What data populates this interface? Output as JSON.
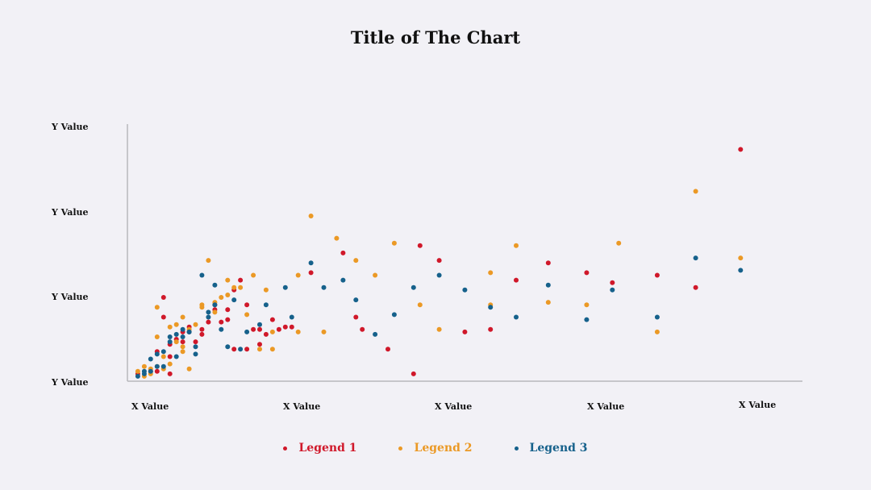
{
  "chart_data": {
    "type": "scatter",
    "title": "Title of The Chart",
    "x_tick_labels": [
      "X Value",
      "X Value",
      "X Value",
      "X Value",
      "X Value"
    ],
    "y_tick_labels": [
      "Y Value",
      "Y Value",
      "Y Value",
      "Y Value"
    ],
    "xlim": [
      0,
      100
    ],
    "ylim": [
      0,
      100
    ],
    "grid": false,
    "legend_position": "bottom",
    "series": [
      {
        "name": "Legend 1",
        "color": "#d0182a",
        "points": [
          [
            1,
            2
          ],
          [
            3,
            3
          ],
          [
            4,
            3
          ],
          [
            4,
            11
          ],
          [
            5,
            25
          ],
          [
            5,
            33
          ],
          [
            6,
            9
          ],
          [
            6,
            14
          ],
          [
            6,
            2
          ],
          [
            7,
            16
          ],
          [
            8,
            19
          ],
          [
            8,
            15
          ],
          [
            9,
            19
          ],
          [
            9,
            21
          ],
          [
            10,
            15
          ],
          [
            11,
            20
          ],
          [
            11,
            18
          ],
          [
            12,
            23
          ],
          [
            13,
            30
          ],
          [
            13,
            28
          ],
          [
            14,
            23
          ],
          [
            15,
            24
          ],
          [
            15,
            28
          ],
          [
            16,
            36
          ],
          [
            16,
            12
          ],
          [
            17,
            40
          ],
          [
            18,
            30
          ],
          [
            18,
            12
          ],
          [
            19,
            20
          ],
          [
            20,
            14
          ],
          [
            20,
            20
          ],
          [
            21,
            18
          ],
          [
            22,
            24
          ],
          [
            23,
            20
          ],
          [
            24,
            21
          ],
          [
            25,
            21
          ],
          [
            28,
            43
          ],
          [
            33,
            51
          ],
          [
            35,
            25
          ],
          [
            36,
            20
          ],
          [
            40,
            12
          ],
          [
            44,
            2
          ],
          [
            45,
            54
          ],
          [
            48,
            48
          ],
          [
            52,
            19
          ],
          [
            56,
            20
          ],
          [
            60,
            40
          ],
          [
            65,
            47
          ],
          [
            71,
            43
          ],
          [
            75,
            39
          ],
          [
            82,
            42
          ],
          [
            88,
            37
          ],
          [
            95,
            93
          ]
        ]
      },
      {
        "name": "Legend 2",
        "color": "#eb9925",
        "points": [
          [
            1,
            3
          ],
          [
            2,
            5
          ],
          [
            2,
            1
          ],
          [
            3,
            4
          ],
          [
            3,
            2
          ],
          [
            4,
            5
          ],
          [
            4,
            17
          ],
          [
            4,
            29
          ],
          [
            5,
            9
          ],
          [
            5,
            4
          ],
          [
            6,
            6
          ],
          [
            6,
            21
          ],
          [
            7,
            15
          ],
          [
            7,
            22
          ],
          [
            8,
            13
          ],
          [
            8,
            11
          ],
          [
            8,
            25
          ],
          [
            9,
            4
          ],
          [
            9,
            20
          ],
          [
            10,
            22
          ],
          [
            11,
            30
          ],
          [
            11,
            29
          ],
          [
            12,
            48
          ],
          [
            13,
            27
          ],
          [
            13,
            31
          ],
          [
            14,
            33
          ],
          [
            15,
            40
          ],
          [
            15,
            34
          ],
          [
            16,
            37
          ],
          [
            17,
            37
          ],
          [
            18,
            26
          ],
          [
            19,
            42
          ],
          [
            20,
            12
          ],
          [
            21,
            36
          ],
          [
            22,
            12
          ],
          [
            22,
            19
          ],
          [
            26,
            42
          ],
          [
            26,
            19
          ],
          [
            28,
            66
          ],
          [
            30,
            19
          ],
          [
            32,
            57
          ],
          [
            35,
            48
          ],
          [
            38,
            42
          ],
          [
            41,
            55
          ],
          [
            45,
            30
          ],
          [
            48,
            20
          ],
          [
            56,
            30
          ],
          [
            56,
            43
          ],
          [
            60,
            54
          ],
          [
            65,
            31
          ],
          [
            71,
            30
          ],
          [
            76,
            55
          ],
          [
            82,
            19
          ],
          [
            88,
            76
          ],
          [
            95,
            49
          ]
        ]
      },
      {
        "name": "Legend 3",
        "color": "#16618b",
        "points": [
          [
            1,
            1
          ],
          [
            2,
            3
          ],
          [
            2,
            2
          ],
          [
            3,
            3
          ],
          [
            3,
            8
          ],
          [
            4,
            5
          ],
          [
            4,
            10
          ],
          [
            5,
            5
          ],
          [
            5,
            11
          ],
          [
            6,
            15
          ],
          [
            6,
            17
          ],
          [
            7,
            18
          ],
          [
            7,
            9
          ],
          [
            8,
            20
          ],
          [
            8,
            17
          ],
          [
            9,
            19
          ],
          [
            9,
            19
          ],
          [
            10,
            10
          ],
          [
            10,
            13
          ],
          [
            11,
            42
          ],
          [
            12,
            25
          ],
          [
            12,
            27
          ],
          [
            13,
            30
          ],
          [
            13,
            38
          ],
          [
            14,
            20
          ],
          [
            15,
            13
          ],
          [
            16,
            32
          ],
          [
            17,
            12
          ],
          [
            18,
            19
          ],
          [
            20,
            22
          ],
          [
            21,
            30
          ],
          [
            24,
            37
          ],
          [
            25,
            25
          ],
          [
            28,
            47
          ],
          [
            30,
            37
          ],
          [
            33,
            40
          ],
          [
            35,
            32
          ],
          [
            38,
            18
          ],
          [
            41,
            26
          ],
          [
            44,
            37
          ],
          [
            48,
            42
          ],
          [
            52,
            36
          ],
          [
            56,
            29
          ],
          [
            60,
            25
          ],
          [
            65,
            38
          ],
          [
            71,
            24
          ],
          [
            75,
            36
          ],
          [
            82,
            25
          ],
          [
            88,
            49
          ],
          [
            95,
            44
          ]
        ]
      }
    ]
  }
}
